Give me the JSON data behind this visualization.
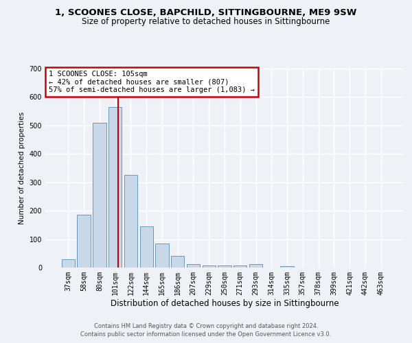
{
  "title": "1, SCOONES CLOSE, BAPCHILD, SITTINGBOURNE, ME9 9SW",
  "subtitle": "Size of property relative to detached houses in Sittingbourne",
  "xlabel": "Distribution of detached houses by size in Sittingbourne",
  "ylabel": "Number of detached properties",
  "footer_line1": "Contains HM Land Registry data © Crown copyright and database right 2024.",
  "footer_line2": "Contains public sector information licensed under the Open Government Licence v3.0.",
  "categories": [
    "37sqm",
    "58sqm",
    "80sqm",
    "101sqm",
    "122sqm",
    "144sqm",
    "165sqm",
    "186sqm",
    "207sqm",
    "229sqm",
    "250sqm",
    "271sqm",
    "293sqm",
    "314sqm",
    "335sqm",
    "357sqm",
    "378sqm",
    "399sqm",
    "421sqm",
    "442sqm",
    "463sqm"
  ],
  "values": [
    30,
    185,
    510,
    565,
    325,
    145,
    85,
    40,
    12,
    8,
    8,
    8,
    12,
    0,
    5,
    0,
    0,
    0,
    0,
    0,
    0
  ],
  "bar_color": "#c8d8e8",
  "bar_edge_color": "#6699bb",
  "property_line_label": "1 SCOONES CLOSE: 105sqm",
  "annotation_line1": "← 42% of detached houses are smaller (807)",
  "annotation_line2": "57% of semi-detached houses are larger (1,083) →",
  "annotation_box_color": "#ffffff",
  "annotation_box_edge_color": "#cc0000",
  "vline_color": "#cc0000",
  "ylim": [
    0,
    700
  ],
  "yticks": [
    0,
    100,
    200,
    300,
    400,
    500,
    600,
    700
  ],
  "background_color": "#eef2f7",
  "grid_color": "#ffffff",
  "title_fontsize": 9.5,
  "subtitle_fontsize": 8.5,
  "xlabel_fontsize": 8.5,
  "ylabel_fontsize": 7.5,
  "tick_fontsize": 7,
  "annotation_fontsize": 7.5,
  "footer_fontsize": 6
}
